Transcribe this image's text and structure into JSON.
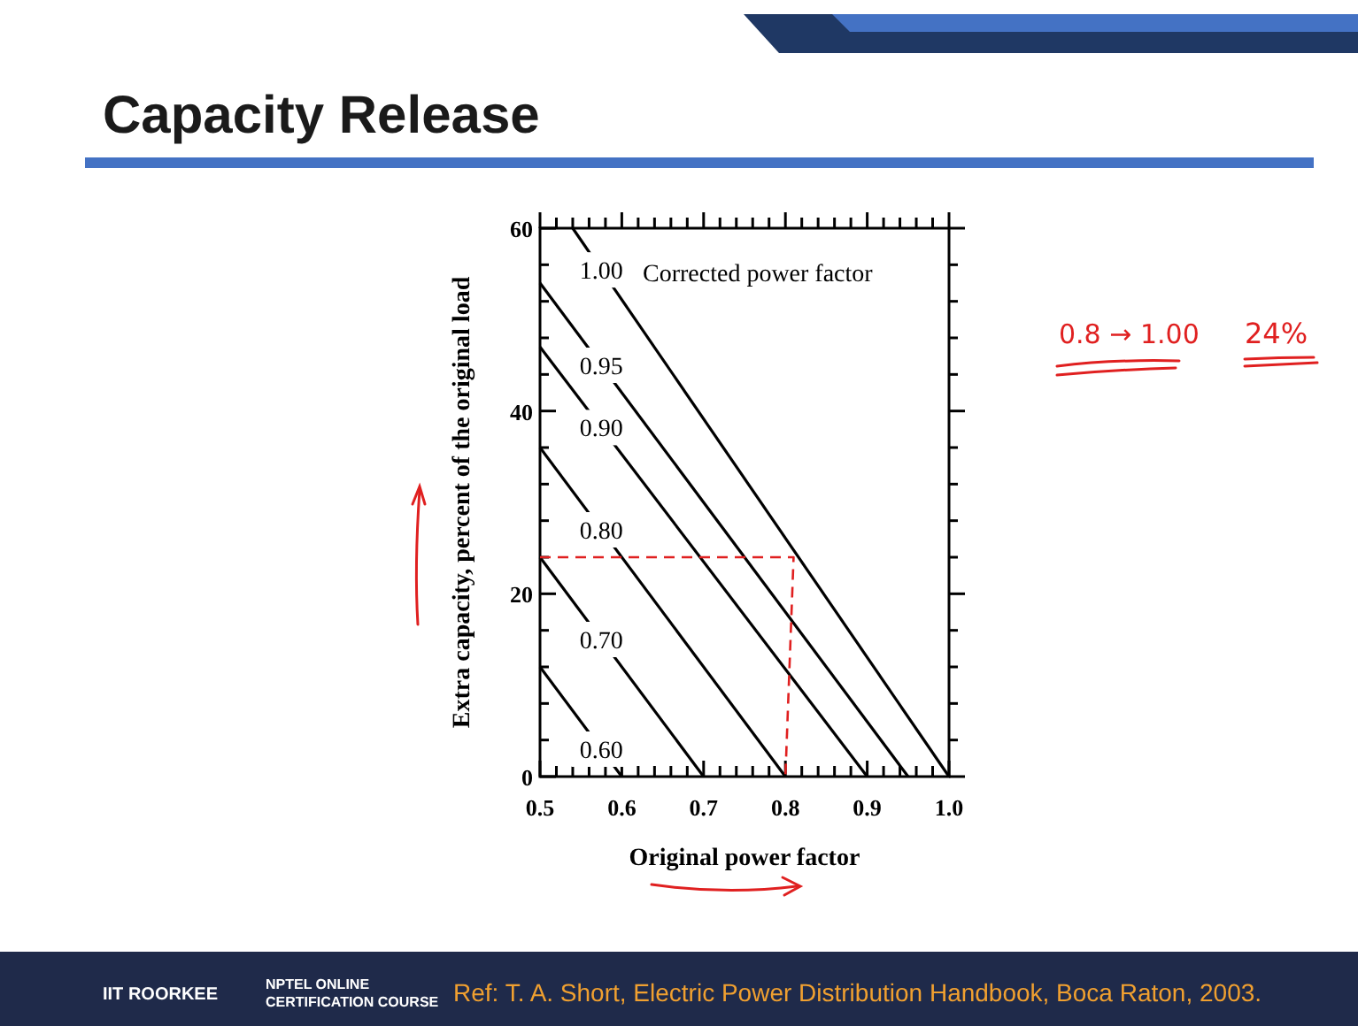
{
  "chart_data": {
    "type": "line",
    "title": "Capacity Release",
    "xlabel": "Original power factor",
    "ylabel": "Extra capacity, percent of the original load",
    "legend_title": "Corrected power factor",
    "xlim": [
      0.5,
      1.0
    ],
    "ylim": [
      0,
      60
    ],
    "xticks": [
      0.5,
      {
        "value": 0.52,
        "label": null
      },
      {
        "value": 0.54,
        "label": null
      },
      {
        "value": 0.56,
        "label": null
      },
      {
        "value": 0.58,
        "label": null
      },
      0.6,
      {
        "value": 0.62,
        "label": null
      },
      {
        "value": 0.64,
        "label": null
      },
      {
        "value": 0.66,
        "label": null
      },
      {
        "value": 0.68,
        "label": null
      },
      0.7,
      {
        "value": 0.72,
        "label": null
      },
      {
        "value": 0.74,
        "label": null
      },
      {
        "value": 0.76,
        "label": null
      },
      {
        "value": 0.78,
        "label": null
      },
      0.8,
      {
        "value": 0.82,
        "label": null
      },
      {
        "value": 0.84,
        "label": null
      },
      {
        "value": 0.86,
        "label": null
      },
      {
        "value": 0.88,
        "label": null
      },
      0.9,
      {
        "value": 0.92,
        "label": null
      },
      {
        "value": 0.94,
        "label": null
      },
      {
        "value": 0.96,
        "label": null
      },
      {
        "value": 0.98,
        "label": null
      },
      {
        "value": 1.0,
        "label": "1.0"
      }
    ],
    "yticks": [
      0,
      {
        "value": 4,
        "label": null
      },
      {
        "value": 8,
        "label": null
      },
      {
        "value": 12,
        "label": null
      },
      {
        "value": 16,
        "label": null
      },
      20,
      {
        "value": 24,
        "label": null
      },
      {
        "value": 28,
        "label": null
      },
      {
        "value": 32,
        "label": null
      },
      {
        "value": 36,
        "label": null
      },
      40,
      {
        "value": 44,
        "label": null
      },
      {
        "value": 48,
        "label": null
      },
      {
        "value": 52,
        "label": null
      },
      {
        "value": 56,
        "label": null
      },
      60
    ],
    "grid": false,
    "marker": "none",
    "line_style": "solid",
    "series": [
      {
        "name": "1.00",
        "color": "#000000",
        "x": [
          0.54,
          1.0
        ],
        "values": [
          60,
          0
        ]
      },
      {
        "name": "0.95",
        "color": "#000000",
        "x": [
          0.5,
          0.95
        ],
        "values": [
          54,
          0
        ]
      },
      {
        "name": "0.90",
        "color": "#000000",
        "x": [
          0.5,
          0.9
        ],
        "values": [
          47,
          0
        ]
      },
      {
        "name": "0.80",
        "color": "#000000",
        "x": [
          0.5,
          0.8
        ],
        "values": [
          36,
          0
        ]
      },
      {
        "name": "0.70",
        "color": "#000000",
        "x": [
          0.5,
          0.7
        ],
        "values": [
          24,
          0
        ]
      },
      {
        "name": "0.60",
        "color": "#000000",
        "x": [
          0.5,
          0.6
        ],
        "values": [
          12,
          0
        ]
      },
      {
        "color": "#e02020",
        "line_style": "dashed",
        "x": [
          0.5,
          0.81,
          0.8
        ],
        "values": [
          24,
          24,
          0
        ]
      }
    ],
    "annotations": [
      "0.8 → 1.00",
      "24%",
      "Ref: T. A. Short, Electric Power Distribution Handbook, Boca Raton, 2003.",
      "IIT ROORKEE",
      "NPTEL ONLINE CERTIFICATION COURSE"
    ]
  }
}
